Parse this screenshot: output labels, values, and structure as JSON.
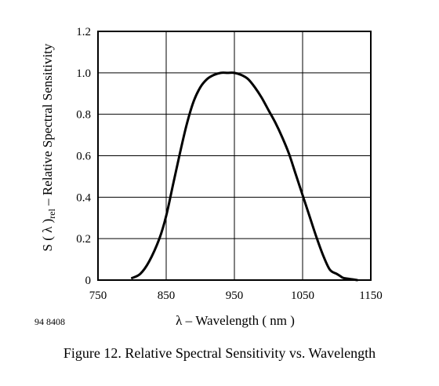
{
  "chart_data": {
    "type": "line",
    "ylabel_main": "S ( λ )",
    "ylabel_sub": "rel",
    "ylabel_rest": " – Relative Spectral Sensitivity",
    "xlabel": "λ – Wavelength ( nm )",
    "x_ticks": [
      "750",
      "850",
      "950",
      "1050",
      "1150"
    ],
    "y_ticks": [
      "0",
      "0.2",
      "0.4",
      "0.6",
      "0.8",
      "1.0",
      "1.2"
    ],
    "xlim": [
      750,
      1150
    ],
    "ylim": [
      0,
      1.2
    ],
    "grid": true,
    "series": [
      {
        "x": [
          800,
          812,
          825,
          840,
          850,
          860,
          870,
          880,
          890,
          900,
          910,
          920,
          930,
          940,
          950,
          960,
          970,
          980,
          990,
          1000,
          1010,
          1020,
          1030,
          1040,
          1050,
          1060,
          1070,
          1080,
          1090,
          1100,
          1105,
          1110,
          1120,
          1130
        ],
        "y": [
          0.01,
          0.03,
          0.09,
          0.2,
          0.31,
          0.46,
          0.61,
          0.75,
          0.86,
          0.93,
          0.97,
          0.99,
          1.0,
          1.0,
          1.0,
          0.99,
          0.97,
          0.93,
          0.88,
          0.82,
          0.76,
          0.69,
          0.61,
          0.51,
          0.41,
          0.31,
          0.21,
          0.12,
          0.05,
          0.03,
          0.02,
          0.01,
          0.005,
          0.0
        ]
      }
    ]
  },
  "figure_code": "94 8408",
  "caption": "Figure 12.  Relative Spectral Sensitivity vs. Wavelength"
}
